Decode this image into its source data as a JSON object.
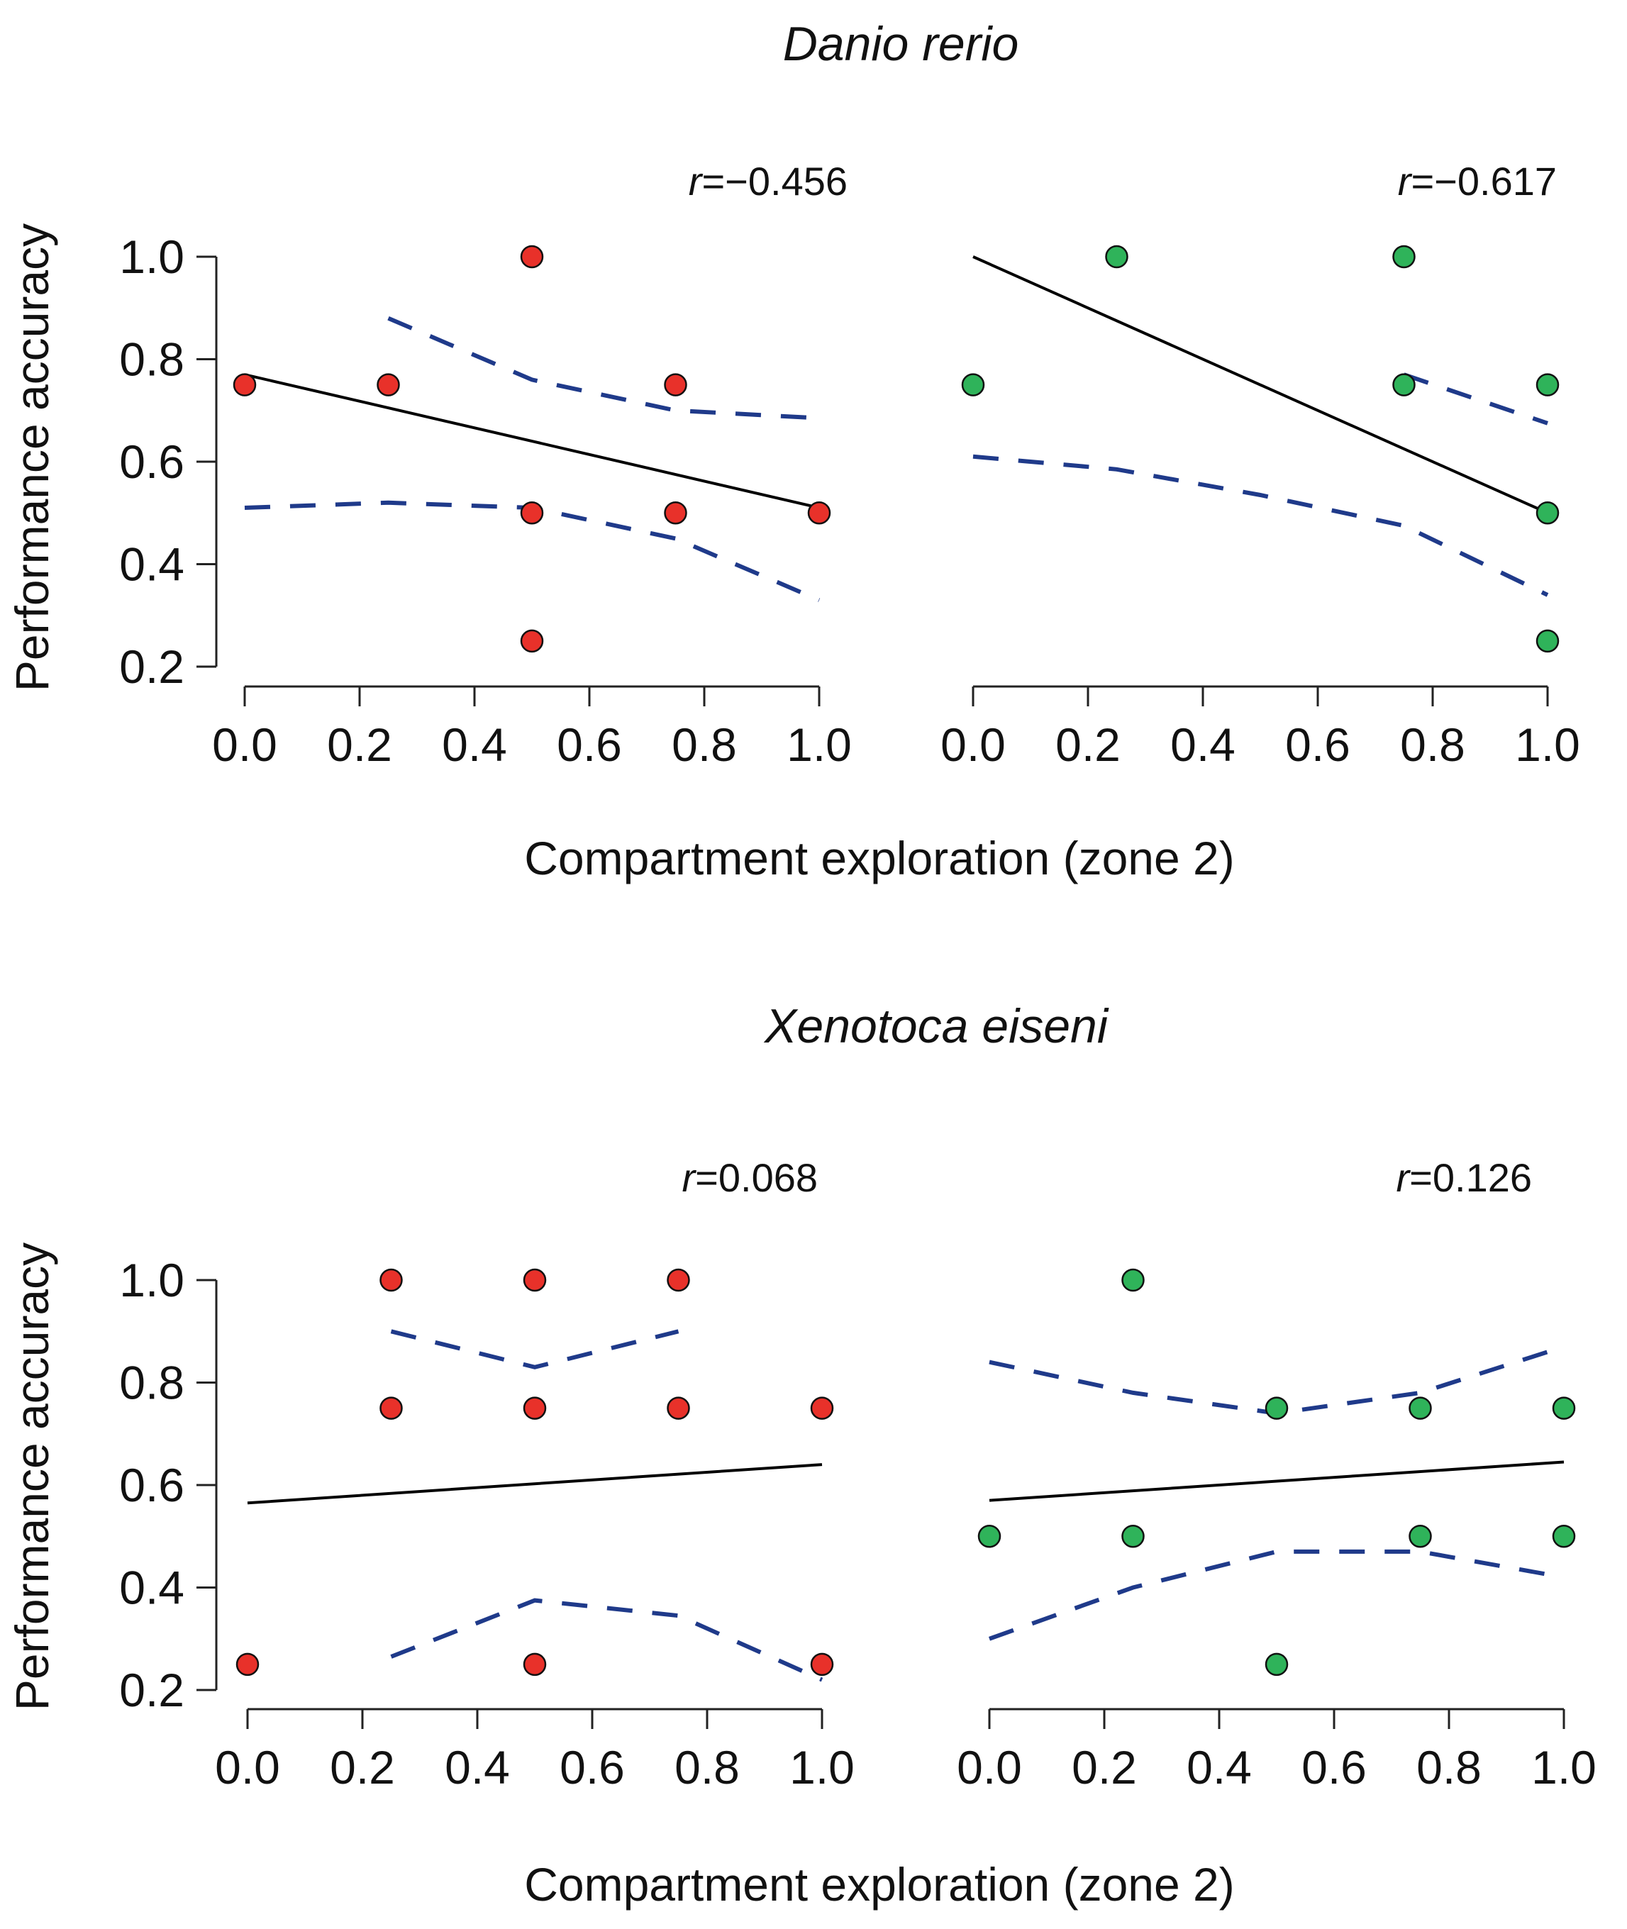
{
  "chart_data": [
    {
      "type": "scatter",
      "group": "Danio rerio",
      "title": "Danio rerio",
      "panel": "left",
      "xlabel": "Compartment exploration (zone 2)",
      "ylabel": "Performance accuracy",
      "xlim": [
        0,
        1
      ],
      "ylim": [
        0.2,
        1.0
      ],
      "x_ticks": [
        "0.0",
        "0.2",
        "0.4",
        "0.6",
        "0.8",
        "1.0"
      ],
      "y_ticks": [
        "0.2",
        "0.4",
        "0.6",
        "0.8",
        "1.0"
      ],
      "r_prefix": "r",
      "r_text": "=−0.456",
      "point_color": "#e8312a",
      "points": [
        [
          0,
          0.75
        ],
        [
          0.25,
          0.75
        ],
        [
          0.5,
          1.0
        ],
        [
          0.5,
          0.5
        ],
        [
          0.5,
          0.25
        ],
        [
          0.75,
          0.75
        ],
        [
          0.75,
          0.5
        ],
        [
          1.0,
          0.5
        ]
      ],
      "fit": [
        [
          0,
          0.77
        ],
        [
          1.0,
          0.51
        ]
      ],
      "ci_upper": [
        [
          0.25,
          0.88
        ],
        [
          0.5,
          0.76
        ],
        [
          0.75,
          0.7
        ],
        [
          1.0,
          0.685
        ]
      ],
      "ci_lower": [
        [
          0,
          0.51
        ],
        [
          0.25,
          0.52
        ],
        [
          0.5,
          0.51
        ],
        [
          0.75,
          0.45
        ],
        [
          1.0,
          0.33
        ]
      ]
    },
    {
      "type": "scatter",
      "group": "Danio rerio",
      "panel": "right",
      "xlim": [
        0,
        1
      ],
      "ylim": [
        0.2,
        1.0
      ],
      "x_ticks": [
        "0.0",
        "0.2",
        "0.4",
        "0.6",
        "0.8",
        "1.0"
      ],
      "r_prefix": "r",
      "r_text": "=−0.617",
      "point_color": "#2fb35a",
      "points": [
        [
          0,
          0.75
        ],
        [
          0.25,
          1.0
        ],
        [
          0.75,
          1.0
        ],
        [
          0.75,
          0.75
        ],
        [
          1.0,
          0.75
        ],
        [
          1.0,
          0.5
        ],
        [
          1.0,
          0.25
        ]
      ],
      "fit": [
        [
          0,
          1.0
        ],
        [
          1.0,
          0.5
        ]
      ],
      "ci_upper": [
        [
          0.75,
          0.77
        ],
        [
          1.0,
          0.675
        ]
      ],
      "ci_lower": [
        [
          0,
          0.61
        ],
        [
          0.25,
          0.585
        ],
        [
          0.5,
          0.535
        ],
        [
          0.75,
          0.475
        ],
        [
          1.0,
          0.34
        ]
      ]
    },
    {
      "type": "scatter",
      "group": "Xenotoca eiseni",
      "title": "Xenotoca eiseni",
      "panel": "left",
      "xlabel": "Compartment exploration (zone 2)",
      "ylabel": "Performance accuracy",
      "xlim": [
        0,
        1
      ],
      "ylim": [
        0.2,
        1.0
      ],
      "x_ticks": [
        "0.0",
        "0.2",
        "0.4",
        "0.6",
        "0.8",
        "1.0"
      ],
      "y_ticks": [
        "0.2",
        "0.4",
        "0.6",
        "0.8",
        "1.0"
      ],
      "r_prefix": "r",
      "r_text": "=0.068",
      "point_color": "#e8312a",
      "points": [
        [
          0,
          0.25
        ],
        [
          0.25,
          1.0
        ],
        [
          0.25,
          0.75
        ],
        [
          0.5,
          1.0
        ],
        [
          0.5,
          0.75
        ],
        [
          0.5,
          0.25
        ],
        [
          0.75,
          1.0
        ],
        [
          0.75,
          0.75
        ],
        [
          1.0,
          0.75
        ],
        [
          1.0,
          0.25
        ]
      ],
      "fit": [
        [
          0,
          0.565
        ],
        [
          1.0,
          0.64
        ]
      ],
      "ci_upper": [
        [
          0.25,
          0.9
        ],
        [
          0.5,
          0.83
        ],
        [
          0.75,
          0.9
        ]
      ],
      "ci_lower": [
        [
          0.25,
          0.265
        ],
        [
          0.5,
          0.375
        ],
        [
          0.75,
          0.345
        ],
        [
          1.0,
          0.22
        ]
      ]
    },
    {
      "type": "scatter",
      "group": "Xenotoca eiseni",
      "panel": "right",
      "xlim": [
        0,
        1
      ],
      "ylim": [
        0.2,
        1.0
      ],
      "x_ticks": [
        "0.0",
        "0.2",
        "0.4",
        "0.6",
        "0.8",
        "1.0"
      ],
      "r_prefix": "r",
      "r_text": "=0.126",
      "point_color": "#2fb35a",
      "points": [
        [
          0,
          0.5
        ],
        [
          0.25,
          1.0
        ],
        [
          0.25,
          0.5
        ],
        [
          0.5,
          0.75
        ],
        [
          0.5,
          0.25
        ],
        [
          0.75,
          0.75
        ],
        [
          0.75,
          0.5
        ],
        [
          1.0,
          0.75
        ],
        [
          1.0,
          0.5
        ]
      ],
      "fit": [
        [
          0,
          0.57
        ],
        [
          1.0,
          0.645
        ]
      ],
      "ci_upper": [
        [
          0,
          0.84
        ],
        [
          0.25,
          0.78
        ],
        [
          0.5,
          0.74
        ],
        [
          0.75,
          0.78
        ],
        [
          1.0,
          0.87
        ]
      ],
      "ci_lower": [
        [
          0,
          0.3
        ],
        [
          0.25,
          0.4
        ],
        [
          0.5,
          0.47
        ],
        [
          0.75,
          0.47
        ],
        [
          1.0,
          0.42
        ]
      ]
    }
  ]
}
